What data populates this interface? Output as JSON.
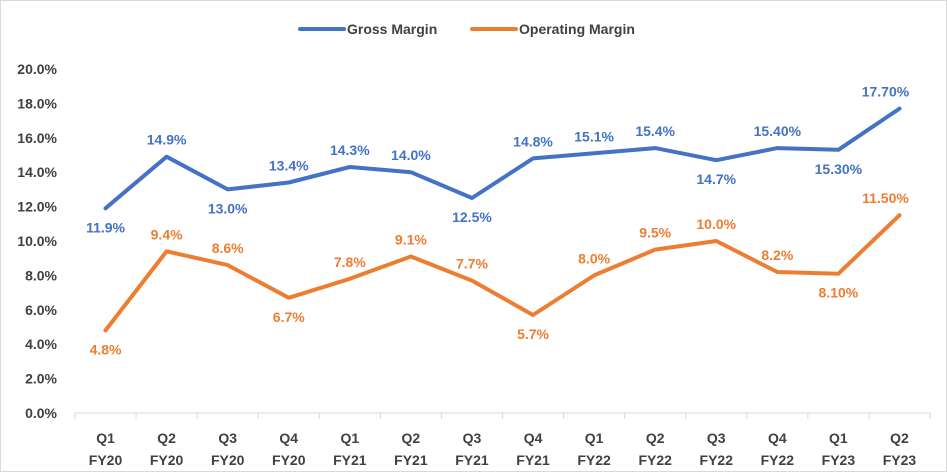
{
  "chart_data": {
    "type": "line",
    "title": "",
    "xlabel": "",
    "ylabel": "",
    "categories": [
      [
        "Q1",
        "FY20"
      ],
      [
        "Q2",
        "FY20"
      ],
      [
        "Q3",
        "FY20"
      ],
      [
        "Q4",
        "FY20"
      ],
      [
        "Q1",
        "FY21"
      ],
      [
        "Q2",
        "FY21"
      ],
      [
        "Q3",
        "FY21"
      ],
      [
        "Q4",
        "FY21"
      ],
      [
        "Q1",
        "FY22"
      ],
      [
        "Q2",
        "FY22"
      ],
      [
        "Q3",
        "FY22"
      ],
      [
        "Q4",
        "FY22"
      ],
      [
        "Q1",
        "FY23"
      ],
      [
        "Q2",
        "FY23"
      ]
    ],
    "ylim": [
      0,
      20
    ],
    "yticks": [
      "0.0%",
      "2.0%",
      "4.0%",
      "6.0%",
      "8.0%",
      "10.0%",
      "12.0%",
      "14.0%",
      "16.0%",
      "18.0%",
      "20.0%"
    ],
    "legend_position": "top-center",
    "grid": false,
    "series": [
      {
        "name": "Gross Margin",
        "color": "#4472C4",
        "values": [
          11.9,
          14.9,
          13.0,
          13.4,
          14.3,
          14.0,
          12.5,
          14.8,
          15.1,
          15.4,
          14.7,
          15.4,
          15.3,
          17.7
        ],
        "labels": [
          "11.9%",
          "14.9%",
          "13.0%",
          "13.4%",
          "14.3%",
          "14.0%",
          "12.5%",
          "14.8%",
          "15.1%",
          "15.4%",
          "14.7%",
          "15.40%",
          "15.30%",
          "17.70%"
        ]
      },
      {
        "name": "Operating Margin",
        "color": "#ED7D31",
        "values": [
          4.8,
          9.4,
          8.6,
          6.7,
          7.8,
          9.1,
          7.7,
          5.7,
          8.0,
          9.5,
          10.0,
          8.2,
          8.1,
          11.5
        ],
        "labels": [
          "4.8%",
          "9.4%",
          "8.6%",
          "6.7%",
          "7.8%",
          "9.1%",
          "7.7%",
          "5.7%",
          "8.0%",
          "9.5%",
          "10.0%",
          "8.2%",
          "8.10%",
          "11.50%"
        ]
      }
    ]
  }
}
